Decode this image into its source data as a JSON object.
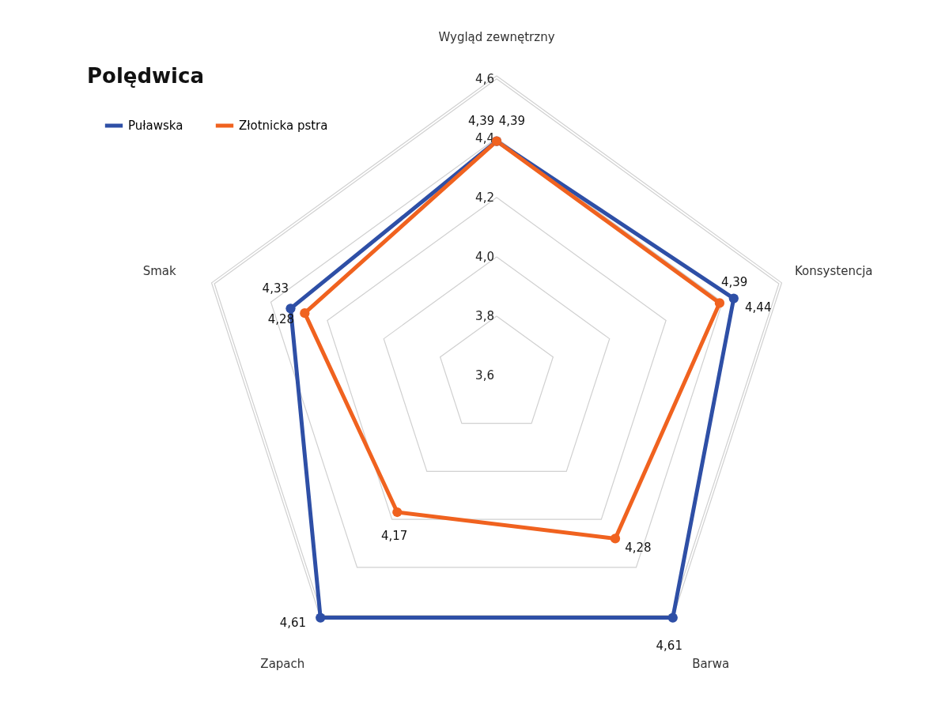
{
  "chart_data": {
    "type": "radar",
    "title": "Polędwica",
    "categories": [
      "Wygląd zewnętrzny",
      "Konsystencja",
      "Barwa",
      "Zapach",
      "Smak"
    ],
    "series": [
      {
        "name": "Puławska",
        "color": "#2e4fa6",
        "values": [
          4.39,
          4.44,
          4.61,
          4.61,
          4.33
        ],
        "value_labels": [
          "4,39",
          "4,44",
          "4,61",
          "4,61",
          "4,33"
        ]
      },
      {
        "name": "Złotnicka pstra",
        "color": "#f0621f",
        "values": [
          4.39,
          4.39,
          4.28,
          4.17,
          4.28
        ],
        "value_labels": [
          "4,39",
          "4,39",
          "4,28",
          "4,17",
          "4,28"
        ]
      }
    ],
    "ylim": [
      3.6,
      4.61
    ],
    "yticks": [
      {
        "value": 3.6,
        "label": "3,6"
      },
      {
        "value": 3.8,
        "label": "3,8"
      },
      {
        "value": 4.0,
        "label": "4,0"
      },
      {
        "value": 4.2,
        "label": "4,2"
      },
      {
        "value": 4.4,
        "label": "4,4"
      },
      {
        "value": 4.6,
        "label": "4,6"
      }
    ],
    "grid": true,
    "legend": "top left",
    "marker": "circle",
    "line_style": "solid"
  }
}
